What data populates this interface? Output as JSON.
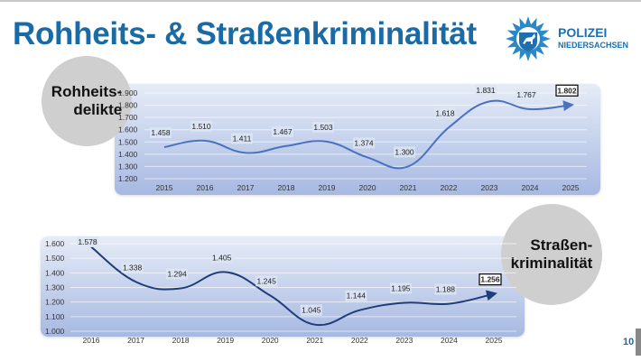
{
  "header": {
    "title": "Rohheits- & Straßenkriminalität"
  },
  "logo": {
    "line1": "POLIZEI",
    "line2": "NIEDERSACHSEN",
    "color": "#1d6fb0"
  },
  "page_number": "10",
  "chart_data": [
    {
      "type": "line",
      "label": "Rohheits-\ndelikte",
      "categories": [
        "2015",
        "2016",
        "2017",
        "2018",
        "2019",
        "2020",
        "2021",
        "2022",
        "2023",
        "2024",
        "2025"
      ],
      "values": [
        1458,
        1510,
        1411,
        1467,
        1503,
        1374,
        1300,
        1618,
        1831,
        1767,
        1802
      ],
      "data_labels": [
        "1.458",
        "1.510",
        "1.411",
        "1.467",
        "1.503",
        "1.374",
        "1.300",
        "1.618",
        "1.831",
        "1.767",
        "1.802"
      ],
      "yticks": [
        "1.200",
        "1.300",
        "1.400",
        "1.500",
        "1.600",
        "1.700",
        "1.800",
        "1.900"
      ],
      "ylim": [
        1200,
        1900
      ],
      "grid": true,
      "line_color": "#4a72c0",
      "smooth": true,
      "highlight_last": true
    },
    {
      "type": "line",
      "label": "Straßen-\nkriminalität",
      "categories": [
        "2016",
        "2017",
        "2018",
        "2019",
        "2020",
        "2021",
        "2022",
        "2023",
        "2024",
        "2025"
      ],
      "values": [
        1578,
        1338,
        1294,
        1405,
        1245,
        1045,
        1144,
        1195,
        1188,
        1256
      ],
      "data_labels": [
        "1.578",
        "1.338",
        "1.294",
        "1.405",
        "1.245",
        "1.045",
        "1.144",
        "1.195",
        "1.188",
        "1.256"
      ],
      "yticks": [
        "1.000",
        "1.100",
        "1.200",
        "1.300",
        "1.400",
        "1.500",
        "1.600"
      ],
      "ylim": [
        1000,
        1600
      ],
      "grid": true,
      "line_color": "#1f3d7a",
      "smooth": true,
      "highlight_last": true
    }
  ]
}
